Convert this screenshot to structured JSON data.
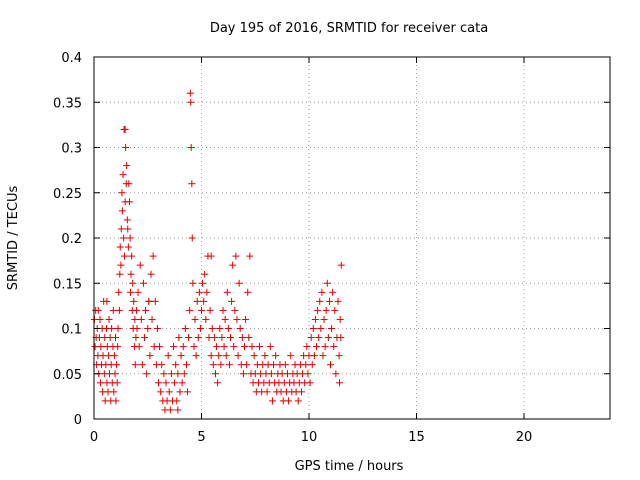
{
  "chart_data": {
    "type": "scatter",
    "title": "Day 195 of 2016, SRMTID for receiver cata",
    "xlabel": "GPS time / hours",
    "ylabel": "SRMTID / TECUs",
    "xlim": [
      0,
      24
    ],
    "ylim": [
      0,
      0.4
    ],
    "xticks": [
      0,
      5,
      10,
      15,
      20
    ],
    "xtick_labels": [
      "0",
      "5",
      "10",
      "15",
      "20"
    ],
    "yticks": [
      0,
      0.05,
      0.1,
      0.15,
      0.2,
      0.25,
      0.3,
      0.35,
      0.4
    ],
    "ytick_labels": [
      "0",
      "0.05",
      "0.1",
      "0.15",
      "0.2",
      "0.25",
      "0.3",
      "0.35",
      "0.4"
    ],
    "grid": true,
    "marker": "+",
    "color": "#e00000",
    "series": [
      {
        "name": "SRMTID",
        "points": [
          [
            0.02,
            0.11
          ],
          [
            0.05,
            0.08
          ],
          [
            0.08,
            0.12
          ],
          [
            0.1,
            0.09
          ],
          [
            0.12,
            0.06
          ],
          [
            0.15,
            0.1
          ],
          [
            0.18,
            0.07
          ],
          [
            0.2,
            0.12
          ],
          [
            0.22,
            0.05
          ],
          [
            0.25,
            0.09
          ],
          [
            0.28,
            0.11
          ],
          [
            0.3,
            0.04
          ],
          [
            0.32,
            0.08
          ],
          [
            0.35,
            0.06
          ],
          [
            0.38,
            0.1
          ],
          [
            0.4,
            0.03
          ],
          [
            0.42,
            0.07
          ],
          [
            0.45,
            0.13
          ],
          [
            0.48,
            0.05
          ],
          [
            0.5,
            0.09
          ],
          [
            0.52,
            0.02
          ],
          [
            0.55,
            0.06
          ],
          [
            0.58,
            0.1
          ],
          [
            0.6,
            0.04
          ],
          [
            0.62,
            0.08
          ],
          [
            0.65,
            0.03
          ],
          [
            0.68,
            0.07
          ],
          [
            0.7,
            0.11
          ],
          [
            0.72,
            0.05
          ],
          [
            0.75,
            0.09
          ],
          [
            0.78,
            0.02
          ],
          [
            0.8,
            0.06
          ],
          [
            0.82,
            0.1
          ],
          [
            0.85,
            0.04
          ],
          [
            0.88,
            0.08
          ],
          [
            0.9,
            0.12
          ],
          [
            0.92,
            0.03
          ],
          [
            0.95,
            0.07
          ],
          [
            0.98,
            0.05
          ],
          [
            1.0,
            0.09
          ],
          [
            1.02,
            0.02
          ],
          [
            1.05,
            0.06
          ],
          [
            1.08,
            0.04
          ],
          [
            1.1,
            0.08
          ],
          [
            1.12,
            0.1
          ],
          [
            1.15,
            0.14
          ],
          [
            1.18,
            0.12
          ],
          [
            1.2,
            0.16
          ],
          [
            1.22,
            0.19
          ],
          [
            1.25,
            0.17
          ],
          [
            1.27,
            0.21
          ],
          [
            1.3,
            0.25
          ],
          [
            1.32,
            0.23
          ],
          [
            1.35,
            0.27
          ],
          [
            1.38,
            0.2
          ],
          [
            1.4,
            0.32
          ],
          [
            1.42,
            0.18
          ],
          [
            1.45,
            0.24
          ],
          [
            1.47,
            0.3
          ],
          [
            1.5,
            0.26
          ],
          [
            1.52,
            0.28
          ],
          [
            1.55,
            0.22
          ],
          [
            1.57,
            0.21
          ],
          [
            1.6,
            0.19
          ],
          [
            1.62,
            0.26
          ],
          [
            1.65,
            0.24
          ],
          [
            1.68,
            0.2
          ],
          [
            1.7,
            0.14
          ],
          [
            1.72,
            0.16
          ],
          [
            1.75,
            0.18
          ],
          [
            1.78,
            0.12
          ],
          [
            1.8,
            0.15
          ],
          [
            1.82,
            0.1
          ],
          [
            1.85,
            0.13
          ],
          [
            1.88,
            0.08
          ],
          [
            1.9,
            0.11
          ],
          [
            1.92,
            0.06
          ],
          [
            1.95,
            0.09
          ],
          [
            1.98,
            0.12
          ],
          [
            2.0,
            0.1
          ],
          [
            2.05,
            0.14
          ],
          [
            2.1,
            0.08
          ],
          [
            2.15,
            0.17
          ],
          [
            2.2,
            0.11
          ],
          [
            2.25,
            0.06
          ],
          [
            2.3,
            0.15
          ],
          [
            2.35,
            0.09
          ],
          [
            2.4,
            0.12
          ],
          [
            2.45,
            0.05
          ],
          [
            2.5,
            0.1
          ],
          [
            2.55,
            0.13
          ],
          [
            2.6,
            0.07
          ],
          [
            2.65,
            0.16
          ],
          [
            2.7,
            0.11
          ],
          [
            2.75,
            0.18
          ],
          [
            2.8,
            0.08
          ],
          [
            2.85,
            0.13
          ],
          [
            2.9,
            0.06
          ],
          [
            2.95,
            0.1
          ],
          [
            3.0,
            0.04
          ],
          [
            3.05,
            0.08
          ],
          [
            3.1,
            0.03
          ],
          [
            3.15,
            0.06
          ],
          [
            3.2,
            0.02
          ],
          [
            3.25,
            0.05
          ],
          [
            3.3,
            0.01
          ],
          [
            3.35,
            0.04
          ],
          [
            3.4,
            0.02
          ],
          [
            3.45,
            0.07
          ],
          [
            3.5,
            0.03
          ],
          [
            3.55,
            0.01
          ],
          [
            3.6,
            0.05
          ],
          [
            3.65,
            0.02
          ],
          [
            3.7,
            0.08
          ],
          [
            3.75,
            0.04
          ],
          [
            3.8,
            0.06
          ],
          [
            3.85,
            0.02
          ],
          [
            3.9,
            0.05
          ],
          [
            3.95,
            0.09
          ],
          [
            4.0,
            0.03
          ],
          [
            4.05,
            0.07
          ],
          [
            4.1,
            0.04
          ],
          [
            4.15,
            0.08
          ],
          [
            4.2,
            0.05
          ],
          [
            4.25,
            0.1
          ],
          [
            4.3,
            0.06
          ],
          [
            4.35,
            0.03
          ],
          [
            4.4,
            0.09
          ],
          [
            4.45,
            0.12
          ],
          [
            4.48,
            0.36
          ],
          [
            4.5,
            0.35
          ],
          [
            4.52,
            0.3
          ],
          [
            4.55,
            0.26
          ],
          [
            4.57,
            0.2
          ],
          [
            4.6,
            0.15
          ],
          [
            4.65,
            0.08
          ],
          [
            4.7,
            0.11
          ],
          [
            4.75,
            0.07
          ],
          [
            4.8,
            0.13
          ],
          [
            4.85,
            0.09
          ],
          [
            4.9,
            0.14
          ],
          [
            4.95,
            0.1
          ],
          [
            5.0,
            0.12
          ],
          [
            5.05,
            0.15
          ],
          [
            5.1,
            0.13
          ],
          [
            5.15,
            0.16
          ],
          [
            5.2,
            0.11
          ],
          [
            5.25,
            0.14
          ],
          [
            5.3,
            0.18
          ],
          [
            5.35,
            0.09
          ],
          [
            5.4,
            0.12
          ],
          [
            5.45,
            0.07
          ],
          [
            5.5,
            0.1
          ],
          [
            5.55,
            0.06
          ],
          [
            5.6,
            0.09
          ],
          [
            5.65,
            0.05
          ],
          [
            5.7,
            0.08
          ],
          [
            5.75,
            0.04
          ],
          [
            5.8,
            0.07
          ],
          [
            5.85,
            0.1
          ],
          [
            5.9,
            0.06
          ],
          [
            5.95,
            0.09
          ],
          [
            6.0,
            0.12
          ],
          [
            6.05,
            0.08
          ],
          [
            6.1,
            0.11
          ],
          [
            6.15,
            0.07
          ],
          [
            6.2,
            0.14
          ],
          [
            6.25,
            0.1
          ],
          [
            6.3,
            0.06
          ],
          [
            6.35,
            0.09
          ],
          [
            6.4,
            0.13
          ],
          [
            6.45,
            0.17
          ],
          [
            6.5,
            0.08
          ],
          [
            6.55,
            0.12
          ],
          [
            6.6,
            0.18
          ],
          [
            6.65,
            0.11
          ],
          [
            6.7,
            0.07
          ],
          [
            6.75,
            0.15
          ],
          [
            6.8,
            0.1
          ],
          [
            6.85,
            0.06
          ],
          [
            6.9,
            0.09
          ],
          [
            6.95,
            0.05
          ],
          [
            7.0,
            0.08
          ],
          [
            7.05,
            0.11
          ],
          [
            7.1,
            0.06
          ],
          [
            7.15,
            0.14
          ],
          [
            7.2,
            0.09
          ],
          [
            7.25,
            0.18
          ],
          [
            7.3,
            0.05
          ],
          [
            7.35,
            0.08
          ],
          [
            7.4,
            0.04
          ],
          [
            7.45,
            0.07
          ],
          [
            7.5,
            0.05
          ],
          [
            7.55,
            0.03
          ],
          [
            7.6,
            0.06
          ],
          [
            7.65,
            0.04
          ],
          [
            7.7,
            0.08
          ],
          [
            7.75,
            0.05
          ],
          [
            7.8,
            0.03
          ],
          [
            7.85,
            0.06
          ],
          [
            7.9,
            0.04
          ],
          [
            7.95,
            0.07
          ],
          [
            8.0,
            0.05
          ],
          [
            8.05,
            0.03
          ],
          [
            8.1,
            0.06
          ],
          [
            8.15,
            0.04
          ],
          [
            8.2,
            0.08
          ],
          [
            8.25,
            0.05
          ],
          [
            8.3,
            0.02
          ],
          [
            8.35,
            0.06
          ],
          [
            8.4,
            0.04
          ],
          [
            8.45,
            0.07
          ],
          [
            8.5,
            0.03
          ],
          [
            8.55,
            0.05
          ],
          [
            8.6,
            0.04
          ],
          [
            8.65,
            0.06
          ],
          [
            8.7,
            0.03
          ],
          [
            8.75,
            0.05
          ],
          [
            8.8,
            0.02
          ],
          [
            8.85,
            0.04
          ],
          [
            8.9,
            0.06
          ],
          [
            8.95,
            0.03
          ],
          [
            9.0,
            0.05
          ],
          [
            9.05,
            0.02
          ],
          [
            9.1,
            0.04
          ],
          [
            9.15,
            0.07
          ],
          [
            9.2,
            0.03
          ],
          [
            9.25,
            0.05
          ],
          [
            9.3,
            0.04
          ],
          [
            9.35,
            0.06
          ],
          [
            9.4,
            0.03
          ],
          [
            9.45,
            0.05
          ],
          [
            9.5,
            0.02
          ],
          [
            9.55,
            0.04
          ],
          [
            9.6,
            0.06
          ],
          [
            9.65,
            0.03
          ],
          [
            9.7,
            0.05
          ],
          [
            9.75,
            0.07
          ],
          [
            9.8,
            0.04
          ],
          [
            9.85,
            0.06
          ],
          [
            9.9,
            0.08
          ],
          [
            9.95,
            0.05
          ],
          [
            10.0,
            0.07
          ],
          [
            10.05,
            0.04
          ],
          [
            10.1,
            0.09
          ],
          [
            10.15,
            0.06
          ],
          [
            10.2,
            0.1
          ],
          [
            10.25,
            0.07
          ],
          [
            10.3,
            0.11
          ],
          [
            10.35,
            0.08
          ],
          [
            10.4,
            0.12
          ],
          [
            10.45,
            0.09
          ],
          [
            10.5,
            0.13
          ],
          [
            10.55,
            0.1
          ],
          [
            10.6,
            0.14
          ],
          [
            10.65,
            0.07
          ],
          [
            10.7,
            0.11
          ],
          [
            10.75,
            0.08
          ],
          [
            10.8,
            0.12
          ],
          [
            10.85,
            0.15
          ],
          [
            10.9,
            0.09
          ],
          [
            10.95,
            0.13
          ],
          [
            11.0,
            0.06
          ],
          [
            11.05,
            0.1
          ],
          [
            11.1,
            0.14
          ],
          [
            11.15,
            0.08
          ],
          [
            11.2,
            0.12
          ],
          [
            11.25,
            0.05
          ],
          [
            11.3,
            0.09
          ],
          [
            11.35,
            0.13
          ],
          [
            11.4,
            0.07
          ],
          [
            11.45,
            0.11
          ],
          [
            11.5,
            0.17
          ],
          [
            11.48,
            0.09
          ],
          [
            11.42,
            0.04
          ],
          [
            0.6,
            0.13
          ],
          [
            1.45,
            0.32
          ],
          [
            2.55,
            0.13
          ],
          [
            3.9,
            0.01
          ],
          [
            5.45,
            0.18
          ]
        ]
      }
    ]
  }
}
